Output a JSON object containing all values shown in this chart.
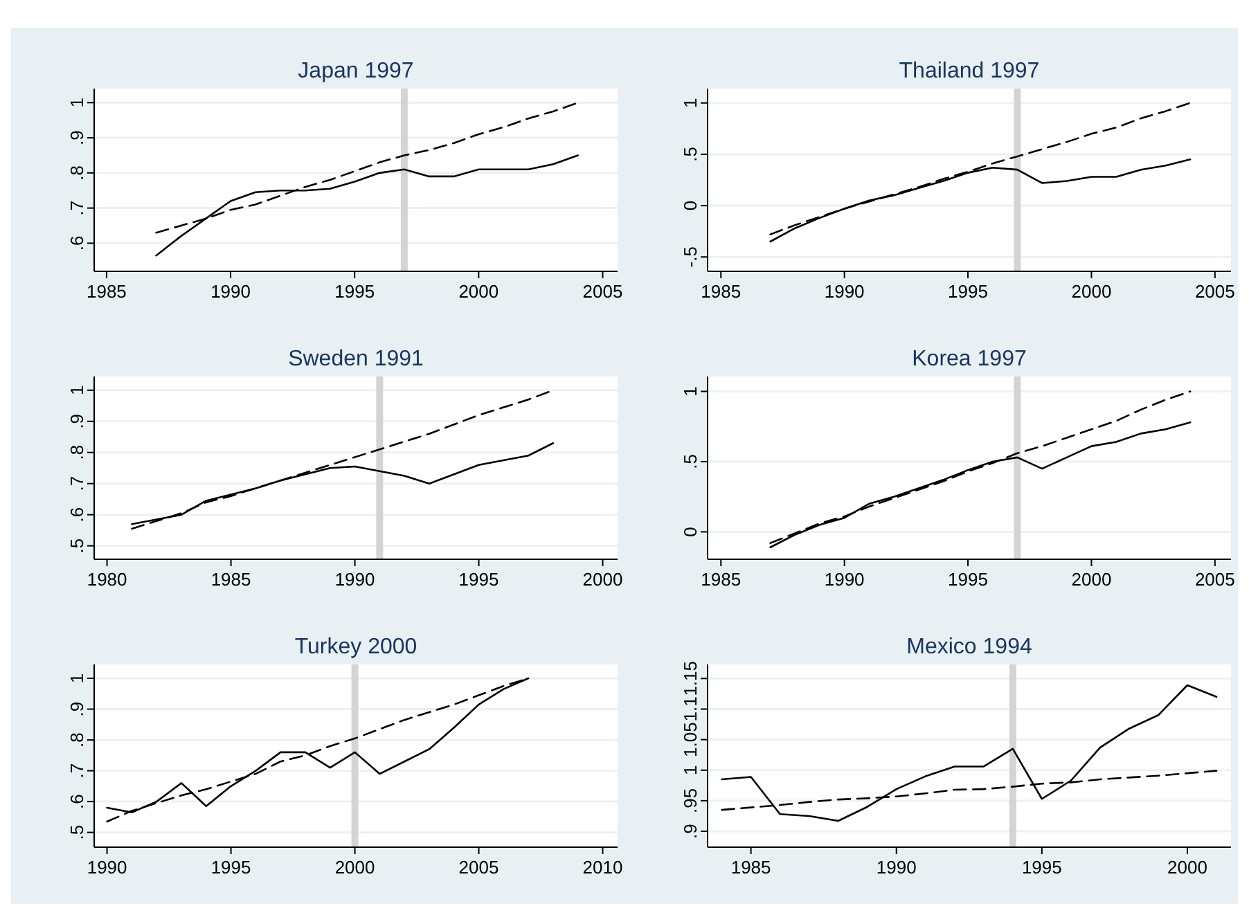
{
  "chart_data": [
    {
      "type": "line",
      "title": "Japan 1997",
      "x": [
        1987,
        1988,
        1989,
        1990,
        1991,
        1992,
        1993,
        1994,
        1995,
        1996,
        1997,
        1998,
        1999,
        2000,
        2001,
        2002,
        2003,
        2004
      ],
      "xlim": [
        1984.5,
        2005.6
      ],
      "xticks": [
        1985,
        1990,
        1995,
        2000,
        2005
      ],
      "ylim": [
        0.52,
        1.04
      ],
      "yticks": [
        {
          "value": 0.6,
          "label": ".6"
        },
        {
          "value": 0.7,
          "label": ".7"
        },
        {
          "value": 0.8,
          "label": ".8"
        },
        {
          "value": 0.9,
          "label": ".9"
        },
        1
      ],
      "grid": "y",
      "series": [
        {
          "color": "#000000",
          "line_style": "solid",
          "values": [
            0.565,
            0.62,
            0.67,
            0.72,
            0.745,
            0.75,
            0.75,
            0.755,
            0.775,
            0.8,
            0.81,
            0.79,
            0.79,
            0.81,
            0.81,
            0.81,
            0.825,
            0.85
          ]
        },
        {
          "color": "#000000",
          "line_style": "dashed",
          "values": [
            0.63,
            0.65,
            0.67,
            0.695,
            0.71,
            0.735,
            0.76,
            0.78,
            0.805,
            0.83,
            0.85,
            0.865,
            0.885,
            0.91,
            0.93,
            0.955,
            0.975,
            1.0
          ]
        }
      ],
      "ref_lines": [
        {
          "axis": "x",
          "value": 1997,
          "color": "#d4d4d4"
        }
      ]
    },
    {
      "type": "line",
      "title": "Thailand 1997",
      "x": [
        1987,
        1988,
        1989,
        1990,
        1991,
        1992,
        1993,
        1994,
        1995,
        1996,
        1997,
        1998,
        1999,
        2000,
        2001,
        2002,
        2003,
        2004
      ],
      "xlim": [
        1984.46,
        2005.65
      ],
      "xticks": [
        1985,
        1990,
        1995,
        2000,
        2005
      ],
      "ylim": [
        -0.64,
        1.14
      ],
      "yticks": [
        {
          "value": -0.5,
          "label": "-.5"
        },
        0,
        {
          "value": 0.5,
          "label": ".5"
        },
        1
      ],
      "grid": "y",
      "series": [
        {
          "color": "#000000",
          "line_style": "solid",
          "values": [
            -0.35,
            -0.22,
            -0.12,
            -0.03,
            0.05,
            0.1,
            0.17,
            0.24,
            0.32,
            0.37,
            0.35,
            0.22,
            0.24,
            0.28,
            0.28,
            0.35,
            0.39,
            0.45
          ]
        },
        {
          "color": "#000000",
          "line_style": "dashed",
          "values": [
            -0.28,
            -0.19,
            -0.11,
            -0.03,
            0.04,
            0.11,
            0.18,
            0.26,
            0.33,
            0.41,
            0.48,
            0.55,
            0.62,
            0.7,
            0.76,
            0.85,
            0.92,
            1.0
          ]
        }
      ],
      "ref_lines": [
        {
          "axis": "x",
          "value": 1997,
          "color": "#d4d4d4"
        }
      ]
    },
    {
      "type": "line",
      "title": "Sweden 1991",
      "x": [
        1981,
        1982,
        1983,
        1984,
        1985,
        1986,
        1987,
        1988,
        1989,
        1990,
        1991,
        1992,
        1993,
        1994,
        1995,
        1996,
        1997,
        1998
      ],
      "xlim": [
        1979.48,
        2000.6
      ],
      "xticks": [
        1980,
        1985,
        1990,
        1995,
        2000
      ],
      "ylim": [
        0.457,
        1.044
      ],
      "yticks": [
        {
          "value": 0.5,
          "label": ".5"
        },
        {
          "value": 0.6,
          "label": ".6"
        },
        {
          "value": 0.7,
          "label": ".7"
        },
        {
          "value": 0.8,
          "label": ".8"
        },
        {
          "value": 0.9,
          "label": ".9"
        },
        1
      ],
      "grid": "y",
      "series": [
        {
          "color": "#000000",
          "line_style": "solid",
          "values": [
            0.57,
            0.585,
            0.6,
            0.645,
            0.665,
            0.685,
            0.71,
            0.73,
            0.75,
            0.755,
            0.74,
            0.725,
            0.7,
            0.73,
            0.76,
            0.775,
            0.79,
            0.83
          ]
        },
        {
          "color": "#000000",
          "line_style": "dashed",
          "values": [
            0.555,
            0.58,
            0.605,
            0.64,
            0.66,
            0.685,
            0.71,
            0.735,
            0.76,
            0.785,
            0.81,
            0.835,
            0.86,
            0.89,
            0.92,
            0.945,
            0.97,
            1.0
          ]
        }
      ],
      "ref_lines": [
        {
          "axis": "x",
          "value": 1991,
          "color": "#d4d4d4"
        }
      ]
    },
    {
      "type": "line",
      "title": "Korea 1997",
      "x": [
        1987,
        1988,
        1989,
        1990,
        1991,
        1992,
        1993,
        1994,
        1995,
        1996,
        1997,
        1998,
        1999,
        2000,
        2001,
        2002,
        2003,
        2004
      ],
      "xlim": [
        1984.46,
        2005.65
      ],
      "xticks": [
        1985,
        1990,
        1995,
        2000,
        2005
      ],
      "ylim": [
        -0.195,
        1.106
      ],
      "yticks": [
        0,
        {
          "value": 0.5,
          "label": ".5"
        },
        1
      ],
      "grid": "y",
      "series": [
        {
          "color": "#000000",
          "line_style": "solid",
          "values": [
            -0.11,
            -0.02,
            0.05,
            0.1,
            0.2,
            0.25,
            0.31,
            0.37,
            0.44,
            0.5,
            0.53,
            0.45,
            0.53,
            0.61,
            0.64,
            0.7,
            0.73,
            0.78
          ]
        },
        {
          "color": "#000000",
          "line_style": "dashed",
          "values": [
            -0.08,
            -0.01,
            0.06,
            0.11,
            0.18,
            0.24,
            0.3,
            0.36,
            0.43,
            0.49,
            0.56,
            0.61,
            0.67,
            0.73,
            0.79,
            0.87,
            0.94,
            1.0
          ]
        }
      ],
      "ref_lines": [
        {
          "axis": "x",
          "value": 1997,
          "color": "#d4d4d4"
        }
      ]
    },
    {
      "type": "line",
      "title": "Turkey 2000",
      "x": [
        1990,
        1991,
        1992,
        1993,
        1994,
        1995,
        1996,
        1997,
        1998,
        1999,
        2000,
        2001,
        2002,
        2003,
        2004,
        2005,
        2006,
        2007
      ],
      "xlim": [
        1989.48,
        2010.6
      ],
      "xticks": [
        1990,
        1995,
        2000,
        2005,
        2010
      ],
      "ylim": [
        0.452,
        1.045
      ],
      "yticks": [
        {
          "value": 0.5,
          "label": ".5"
        },
        {
          "value": 0.6,
          "label": ".6"
        },
        {
          "value": 0.7,
          "label": ".7"
        },
        {
          "value": 0.8,
          "label": ".8"
        },
        {
          "value": 0.9,
          "label": ".9"
        },
        1
      ],
      "grid": "y",
      "series": [
        {
          "color": "#000000",
          "line_style": "solid",
          "values": [
            0.58,
            0.565,
            0.6,
            0.66,
            0.585,
            0.65,
            0.7,
            0.76,
            0.76,
            0.71,
            0.76,
            0.69,
            0.73,
            0.77,
            0.84,
            0.915,
            0.965,
            1.0
          ]
        },
        {
          "color": "#000000",
          "line_style": "dashed",
          "values": [
            0.535,
            0.57,
            0.595,
            0.62,
            0.64,
            0.665,
            0.69,
            0.73,
            0.75,
            0.78,
            0.805,
            0.835,
            0.865,
            0.89,
            0.915,
            0.945,
            0.975,
            1.0
          ]
        }
      ],
      "ref_lines": [
        {
          "axis": "x",
          "value": 2000,
          "color": "#d4d4d4"
        }
      ]
    },
    {
      "type": "line",
      "title": "Mexico 1994",
      "x": [
        1984,
        1985,
        1986,
        1987,
        1988,
        1989,
        1990,
        1991,
        1992,
        1993,
        1994,
        1995,
        1996,
        1997,
        1998,
        1999,
        2000,
        2001
      ],
      "xlim": [
        1983.51,
        2001.5
      ],
      "xticks": [
        1985,
        1990,
        1995,
        2000
      ],
      "ylim": [
        0.874,
        1.173
      ],
      "yticks": [
        {
          "value": 0.9,
          "label": ".9"
        },
        {
          "value": 0.95,
          "label": ".95"
        },
        1,
        1.05,
        1.1,
        1.15
      ],
      "grid": "y",
      "series": [
        {
          "color": "#000000",
          "line_style": "solid",
          "values": [
            0.985,
            0.989,
            0.928,
            0.925,
            0.917,
            0.94,
            0.969,
            0.99,
            1.006,
            1.006,
            1.035,
            0.953,
            0.983,
            1.037,
            1.068,
            1.09,
            1.139,
            1.12
          ]
        },
        {
          "color": "#000000",
          "line_style": "dashed",
          "values": [
            0.935,
            0.939,
            0.943,
            0.948,
            0.952,
            0.954,
            0.957,
            0.962,
            0.968,
            0.969,
            0.973,
            0.978,
            0.98,
            0.985,
            0.988,
            0.991,
            0.995,
            0.999
          ]
        }
      ],
      "ref_lines": [
        {
          "axis": "x",
          "value": 1994,
          "color": "#d4d4d4"
        }
      ]
    }
  ]
}
